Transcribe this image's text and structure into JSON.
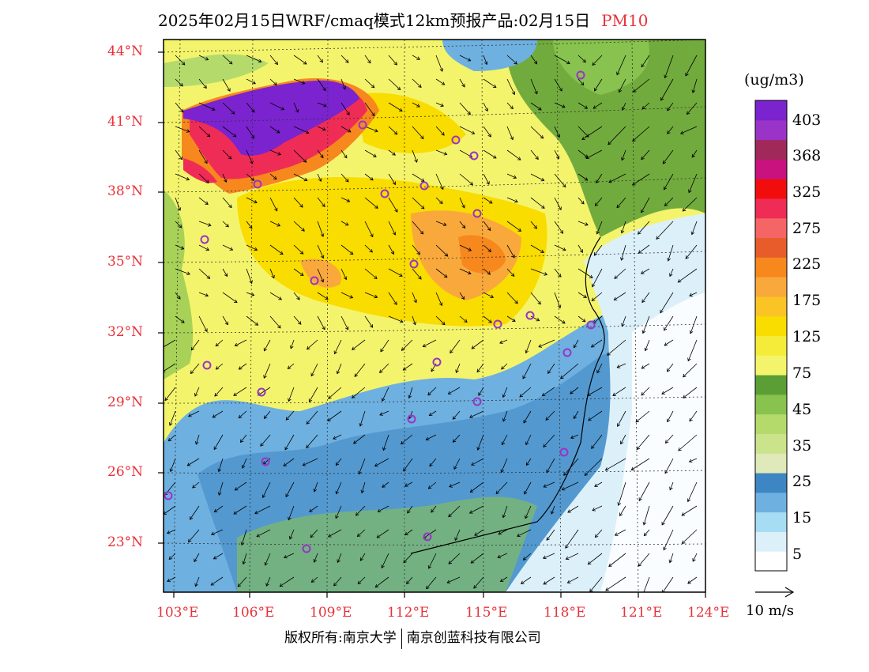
{
  "title": {
    "text": "2025年02月15日WRF/cmaq模式12km预报产品:02月15日",
    "pollutant": "PM10"
  },
  "colorbar": {
    "unit": "(ug/m3)",
    "colors": [
      "#ffffff",
      "#dcf0fa",
      "#a7dcf5",
      "#6eb0e0",
      "#3e86c3",
      "#dfe9b9",
      "#cbe38b",
      "#b5da6c",
      "#88c24f",
      "#5a9e35",
      "#f4f46c",
      "#f5ec3a",
      "#f9dc00",
      "#fbc425",
      "#f9a93c",
      "#f7881d",
      "#e85c2c",
      "#f66565",
      "#ef2c56",
      "#f20d0d",
      "#c8127d",
      "#a0295a",
      "#9a33c7",
      "#7a23cf"
    ],
    "labels": [
      "5",
      "15",
      "25",
      "35",
      "45",
      "75",
      "125",
      "175",
      "225",
      "275",
      "325",
      "368",
      "403"
    ]
  },
  "axes": {
    "lat_labels": [
      "44°N",
      "41°N",
      "38°N",
      "35°N",
      "32°N",
      "29°N",
      "26°N",
      "23°N"
    ],
    "lon_labels": [
      "103°E",
      "106°E",
      "109°E",
      "112°E",
      "115°E",
      "118°E",
      "121°E",
      "124°E"
    ]
  },
  "wind_reference": "10 m/s",
  "credit": {
    "left": "版权所有:南京大学",
    "right": "南京创蓝科技有限公司"
  },
  "legend_colors": {
    "title_pollutant": "#e8313a",
    "axis_labels": "#e8313a",
    "station_marker": "#9a33c7"
  }
}
